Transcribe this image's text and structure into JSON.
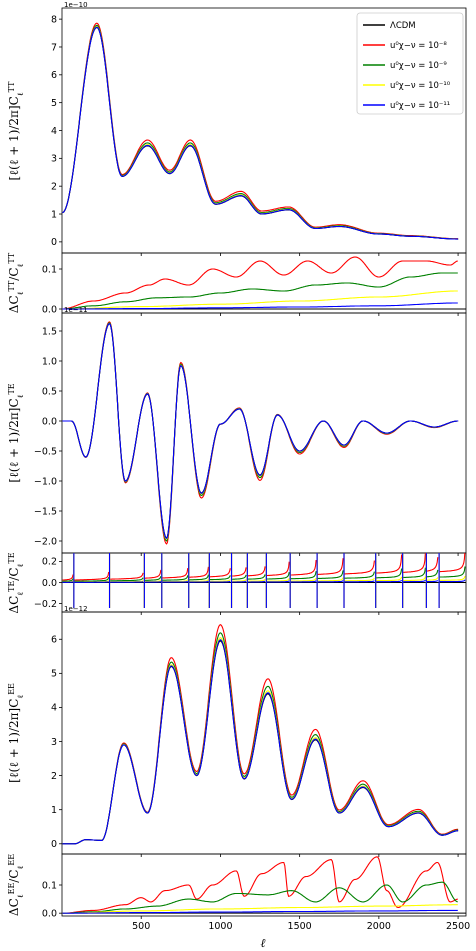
{
  "chart_data": {
    "type": "line",
    "shared_x": {
      "label": "ℓ",
      "xlim": [
        0,
        2550
      ],
      "ticks": [
        500,
        1000,
        1500,
        2000,
        2500
      ],
      "tick_labels": [
        "500",
        "1000",
        "1500",
        "2000",
        "2500"
      ]
    },
    "legend": {
      "placement": "top-right",
      "entries": [
        {
          "label": "ΛCDM",
          "color": "#000000"
        },
        {
          "label": "u⁰χ−ν = 10⁻⁸",
          "color": "#ff0000"
        },
        {
          "label": "u⁰χ−ν = 10⁻⁹",
          "color": "#008000"
        },
        {
          "label": "u⁰χ−ν = 10⁻¹⁰",
          "color": "#ffff00"
        },
        {
          "label": "u⁰χ−ν = 10⁻¹¹",
          "color": "#0000ff"
        }
      ]
    },
    "panels": [
      {
        "id": "TT",
        "ylabel": "[ℓ(ℓ+1)/2π]C_ℓ^TT",
        "multiplier": "1e−10",
        "ylim": [
          -0.4,
          8.4
        ],
        "yticks": [
          0,
          1,
          2,
          3,
          4,
          5,
          6,
          7,
          8
        ],
        "ytick_labels": [
          "0",
          "1",
          "2",
          "3",
          "4",
          "5",
          "6",
          "7",
          "8"
        ],
        "peaks_l": [
          2,
          220,
          380,
          540,
          680,
          810,
          970,
          1130,
          1260,
          1430,
          1600,
          1750,
          2000,
          2200,
          2500
        ],
        "peaks_lcdm": [
          1.05,
          7.7,
          2.35,
          3.45,
          2.45,
          3.45,
          1.35,
          1.65,
          1.0,
          1.15,
          0.48,
          0.55,
          0.28,
          0.2,
          0.1
        ],
        "rel_enh": [
          0.0,
          0.02,
          0.03,
          0.06,
          0.05,
          0.06,
          0.08,
          0.1,
          0.11,
          0.09,
          0.1,
          0.12,
          0.11,
          0.12,
          0.12
        ]
      },
      {
        "id": "dTT",
        "ylabel": "ΔC_ℓ^TT/C_ℓ^TT",
        "ylim": [
          -0.01,
          0.14
        ],
        "yticks": [
          0.0,
          0.1
        ],
        "ytick_labels": [
          "0.0",
          "0.1"
        ],
        "series": [
          {
            "name": "u⁰χ−ν = 10⁻⁸",
            "color": "#ff0000",
            "x": [
              0,
              200,
              400,
              550,
              650,
              800,
              950,
              1100,
              1250,
              1400,
              1550,
              1700,
              1850,
              2000,
              2150,
              2300,
              2450,
              2500
            ],
            "y": [
              0.0,
              0.02,
              0.04,
              0.06,
              0.075,
              0.06,
              0.1,
              0.08,
              0.12,
              0.085,
              0.12,
              0.09,
              0.13,
              0.08,
              0.12,
              0.12,
              0.11,
              0.12
            ]
          },
          {
            "name": "u⁰χ−ν = 10⁻⁹",
            "color": "#008000",
            "x": [
              0,
              200,
              400,
              600,
              800,
              1000,
              1200,
              1400,
              1600,
              1800,
              2000,
              2200,
              2400,
              2500
            ],
            "y": [
              0.0,
              0.008,
              0.018,
              0.028,
              0.03,
              0.04,
              0.05,
              0.045,
              0.06,
              0.065,
              0.055,
              0.08,
              0.09,
              0.09
            ]
          },
          {
            "name": "u⁰χ−ν = 10⁻¹⁰",
            "color": "#ffff00",
            "x": [
              0,
              500,
              1000,
              1500,
              2000,
              2500
            ],
            "y": [
              0.0,
              0.006,
              0.012,
              0.02,
              0.03,
              0.045
            ]
          },
          {
            "name": "u⁰χ−ν = 10⁻¹¹",
            "color": "#0000ff",
            "x": [
              0,
              500,
              1000,
              1500,
              2000,
              2500
            ],
            "y": [
              0.0,
              0.001,
              0.003,
              0.005,
              0.008,
              0.015
            ]
          }
        ]
      },
      {
        "id": "TE",
        "ylabel": "[ℓ(ℓ+1)/2π]C_ℓ^TE",
        "multiplier": "1e−11",
        "ylim": [
          -2.2,
          1.8
        ],
        "yticks": [
          -2.0,
          -1.5,
          -1.0,
          -0.5,
          0.0,
          0.5,
          1.0,
          1.5
        ],
        "ytick_labels": [
          "−2.0",
          "−1.5",
          "−1.0",
          "−0.5",
          "0.0",
          "0.5",
          "1.0",
          "1.5"
        ],
        "peaks_l": [
          2,
          60,
          150,
          300,
          400,
          540,
          660,
          750,
          880,
          1000,
          1120,
          1250,
          1360,
          1500,
          1650,
          1780,
          1900,
          2050,
          2200,
          2350,
          2500
        ],
        "peaks_lcdm": [
          0.0,
          0.0,
          -0.6,
          1.62,
          -1.0,
          0.45,
          -1.95,
          0.92,
          -1.2,
          -0.05,
          0.2,
          -0.9,
          0.1,
          -0.5,
          0.0,
          -0.4,
          0.0,
          -0.2,
          0.0,
          -0.1,
          0.0
        ],
        "rel_enh": [
          0,
          0,
          0.01,
          0.02,
          0.03,
          0.04,
          0.05,
          0.06,
          0.07,
          0.08,
          0.09,
          0.1,
          0.1,
          0.1,
          0.1,
          0.1,
          0.1,
          0.1,
          0.1,
          0.1,
          0.1
        ]
      },
      {
        "id": "dTE",
        "ylabel": "ΔC_ℓ^TE/C_ℓ^TE",
        "ylim": [
          -0.28,
          0.28
        ],
        "yticks": [
          -0.2,
          0.0,
          0.2
        ],
        "ytick_labels": [
          "−0.2",
          "0.0",
          "0.2"
        ],
        "divergences_l": [
          75,
          300,
          520,
          630,
          800,
          930,
          1070,
          1170,
          1290,
          1440,
          1610,
          1780,
          1980,
          2150,
          2300,
          2380
        ],
        "amplitudes": [
          {
            "color": "#ff0000",
            "a": 0.1
          },
          {
            "color": "#008000",
            "a": 0.05
          },
          {
            "color": "#ffff00",
            "a": 0.02
          },
          {
            "color": "#0000ff",
            "a": 0.008
          }
        ]
      },
      {
        "id": "EE",
        "ylabel": "[ℓ(ℓ+1)/2π]C_ℓ^EE",
        "multiplier": "1e−12",
        "ylim": [
          -0.3,
          6.8
        ],
        "yticks": [
          0,
          1,
          2,
          3,
          4,
          5,
          6
        ],
        "ytick_labels": [
          "0",
          "1",
          "2",
          "3",
          "4",
          "5",
          "6"
        ],
        "peaks_l": [
          2,
          80,
          150,
          250,
          390,
          540,
          690,
          850,
          1000,
          1150,
          1300,
          1450,
          1600,
          1750,
          1900,
          2060,
          2250,
          2400,
          2500
        ],
        "peaks_lcdm": [
          0.0,
          0.0,
          0.12,
          0.1,
          2.9,
          0.9,
          5.2,
          2.0,
          5.95,
          1.9,
          4.4,
          1.3,
          3.05,
          0.9,
          1.65,
          0.5,
          0.9,
          0.25,
          0.38
        ],
        "rel_enh": [
          0,
          0,
          0,
          0,
          0.02,
          0.03,
          0.05,
          0.06,
          0.08,
          0.08,
          0.1,
          0.1,
          0.1,
          0.1,
          0.12,
          0.12,
          0.12,
          0.12,
          0.12
        ]
      },
      {
        "id": "dEE",
        "ylabel": "ΔC_ℓ^EE/C_ℓ^EE",
        "ylim": [
          -0.01,
          0.21
        ],
        "yticks": [
          0.0,
          0.1
        ],
        "ytick_labels": [
          "0.0",
          "0.1"
        ],
        "series": [
          {
            "name": "u⁰χ−ν = 10⁻⁸",
            "color": "#ff0000",
            "x": [
              0,
              200,
              400,
              500,
              560,
              650,
              800,
              850,
              950,
              1100,
              1150,
              1260,
              1400,
              1430,
              1540,
              1700,
              1750,
              1850,
              1990,
              2050,
              2120,
              2300,
              2370,
              2450,
              2500
            ],
            "y": [
              0.0,
              0.01,
              0.03,
              0.055,
              0.04,
              0.08,
              0.1,
              0.05,
              0.1,
              0.15,
              0.06,
              0.14,
              0.18,
              0.06,
              0.13,
              0.19,
              0.04,
              0.12,
              0.2,
              0.08,
              0.02,
              0.15,
              0.18,
              0.04,
              0.05
            ]
          },
          {
            "name": "u⁰χ−ν = 10⁻⁹",
            "color": "#008000",
            "x": [
              0,
              200,
              400,
              600,
              800,
              950,
              1100,
              1300,
              1450,
              1600,
              1750,
              1900,
              2050,
              2150,
              2300,
              2400,
              2500
            ],
            "y": [
              0.0,
              0.005,
              0.015,
              0.025,
              0.05,
              0.04,
              0.07,
              0.065,
              0.08,
              0.04,
              0.09,
              0.04,
              0.1,
              0.04,
              0.1,
              0.11,
              0.04
            ]
          },
          {
            "name": "u⁰χ−ν = 10⁻¹⁰",
            "color": "#ffff00",
            "x": [
              0,
              500,
              1000,
              1500,
              2000,
              2500
            ],
            "y": [
              0.0,
              0.008,
              0.015,
              0.02,
              0.025,
              0.03
            ]
          },
          {
            "name": "u⁰χ−ν = 10⁻¹¹",
            "color": "#0000ff",
            "x": [
              0,
              500,
              1000,
              1500,
              2000,
              2500
            ],
            "y": [
              0.0,
              0.002,
              0.004,
              0.006,
              0.008,
              0.01
            ]
          }
        ]
      }
    ]
  }
}
